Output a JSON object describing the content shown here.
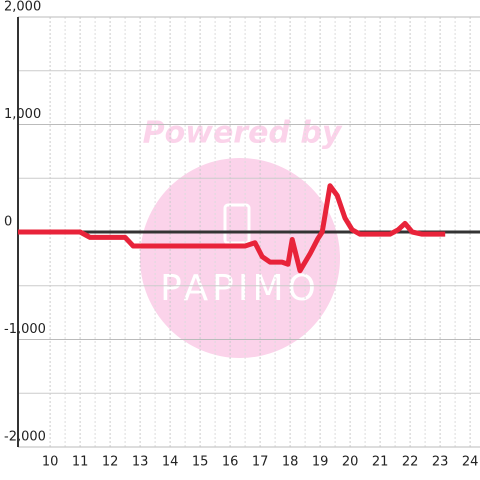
{
  "chart_data": {
    "type": "line",
    "watermark": {
      "title": "Powered by",
      "logo": "PAPIMO"
    },
    "x": [
      8.93,
      11.0,
      11.33,
      12.5,
      12.77,
      16.5,
      16.83,
      17.07,
      17.33,
      17.73,
      17.93,
      18.07,
      18.33,
      18.67,
      18.93,
      19.07,
      19.33,
      19.57,
      19.83,
      20.07,
      20.33,
      21.33,
      21.6,
      21.83,
      22.07,
      22.4,
      23.17
    ],
    "series": [
      {
        "color": "#e8233a",
        "values": [
          0,
          0,
          -50,
          -50,
          -130,
          -130,
          -100,
          -230,
          -280,
          -280,
          -300,
          -70,
          -360,
          -200,
          -60,
          0,
          430,
          340,
          130,
          20,
          -20,
          -20,
          20,
          80,
          0,
          -20,
          -20
        ]
      }
    ],
    "xlim": [
      8.93,
      24.33
    ],
    "xticks": [
      10,
      11,
      12,
      13,
      14,
      15,
      16,
      17,
      18,
      19,
      20,
      21,
      22,
      23,
      24
    ],
    "ylim": [
      -2000,
      2000
    ],
    "yticks": [
      {
        "value": -2000,
        "label": "-2,000"
      },
      {
        "value": -1000,
        "label": "-1,000"
      },
      0,
      {
        "value": 1000,
        "label": "1,000"
      },
      {
        "value": 2000,
        "label": "2,000"
      }
    ],
    "grid": true
  }
}
